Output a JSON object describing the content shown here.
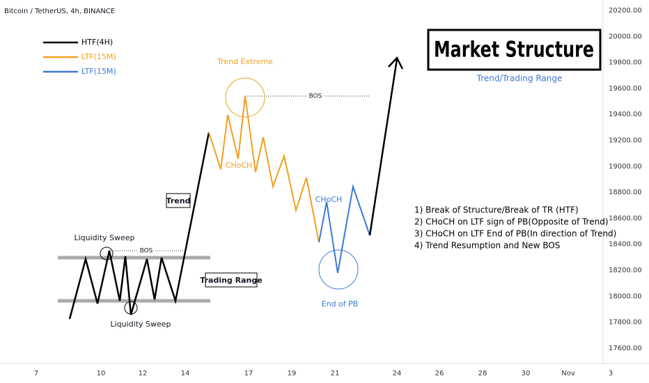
{
  "header": {
    "title": "Bitcoin / TetherUS, 4h, BINANCE"
  },
  "price_axis": {
    "ticks": [
      "20200.00",
      "20000.00",
      "19800.00",
      "19600.00",
      "19400.00",
      "19200.00",
      "19000.00",
      "18800.00",
      "18600.00",
      "18400.00",
      "18200.00",
      "18000.00",
      "17800.00",
      "17600.00"
    ]
  },
  "time_axis": {
    "labels": [
      "7",
      "10",
      "12",
      "14",
      "17",
      "19",
      "21",
      "24",
      "26",
      "28",
      "30",
      "Nov",
      "3"
    ]
  },
  "legend": [
    {
      "name": "HTF(4H)",
      "color": "#000000"
    },
    {
      "name": "LTF(15M)",
      "color": "#f0a01e"
    },
    {
      "name": "LTF(15M)",
      "color": "#3a78d8"
    }
  ],
  "annotations": {
    "title": "Market Structure",
    "subtitle": "Trend/Trading Range",
    "trend_extreme": "Trend Extreme",
    "choch_orange": "CHoCH",
    "choch_blue": "CHoCH",
    "end_of_pb": "End of PB",
    "bos_top": "BOS",
    "bos_bottom": "BOS",
    "sweep_top": "Liquidity Sweep",
    "sweep_bottom": "Liquidity Sweep",
    "trend": "Trend",
    "trading_range": "Trading Range"
  },
  "notes": [
    "1) Break of Structure/Break of TR (HTF)",
    "2) CHoCH on LTF sign of PB(Opposite of Trend)",
    "3) CHoCH on LTF End of PB(In direction of Trend)",
    "4) Trend Resumption and New BOS"
  ]
}
